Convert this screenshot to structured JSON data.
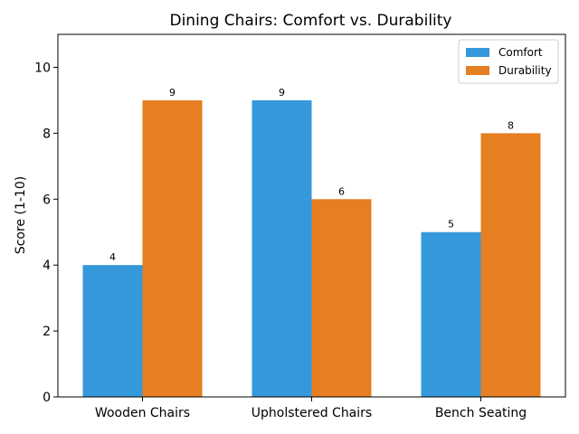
{
  "chart_data": {
    "type": "bar",
    "title": "Dining Chairs: Comfort vs. Durability",
    "xlabel": "",
    "ylabel": "Score (1-10)",
    "categories": [
      "Wooden Chairs",
      "Upholstered Chairs",
      "Bench Seating"
    ],
    "series": [
      {
        "name": "Comfort",
        "values": [
          4,
          9,
          5
        ],
        "color": "#3498db"
      },
      {
        "name": "Durability",
        "values": [
          9,
          6,
          8
        ],
        "color": "#e67e22"
      }
    ],
    "ylim": [
      0,
      11
    ],
    "yticks": [
      0,
      2,
      4,
      6,
      8,
      10
    ],
    "grid": false,
    "legend_position": "top-right",
    "show_data_labels": true
  }
}
